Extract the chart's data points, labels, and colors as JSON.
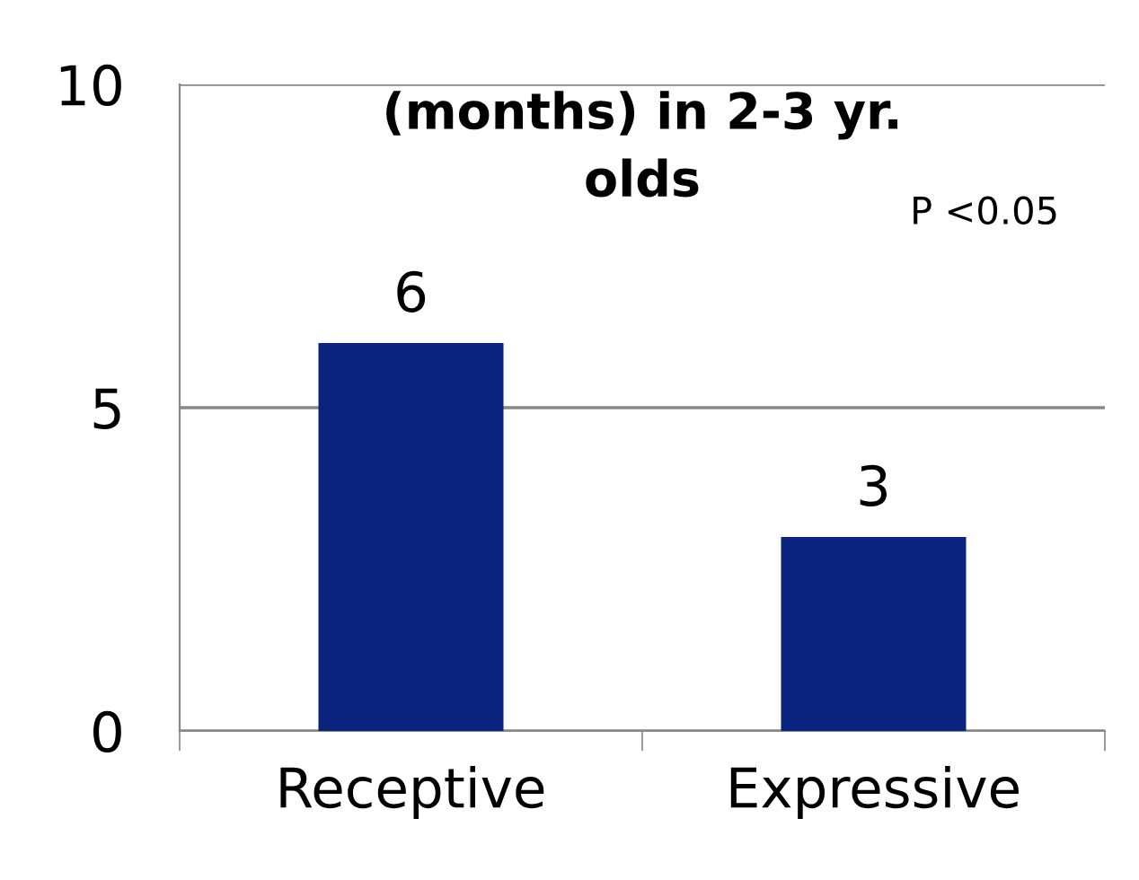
{
  "chart_data": {
    "type": "bar",
    "title": "(months) in 2-3 yr.\nolds",
    "categories": [
      "Receptive",
      "Expressive"
    ],
    "values": [
      6,
      3
    ],
    "color": "#0a237f",
    "ylim": [
      0,
      10
    ],
    "yticks": [
      0,
      5,
      10
    ],
    "grid": "y",
    "data_labels": true,
    "annotations": [
      "P <0.05"
    ]
  }
}
